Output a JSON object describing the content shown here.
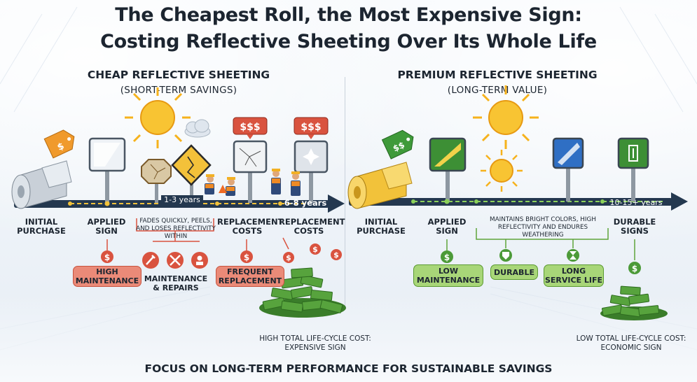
{
  "title_line1": "The Cheapest Roll, the Most Expensive Sign:",
  "title_line2": "Costing Reflective Sheeting Over Its Whole Life",
  "cheap": {
    "heading": "CHEAP REFLECTIVE SHEETING",
    "subheading": "(SHORT-TERM SAVINGS)",
    "tag_symbol": "$",
    "sign_cost_1": "$$$",
    "sign_cost_2": "$$$",
    "duration_1": "1-3 years",
    "duration_2": "6-8 years",
    "initial_purchase": "INITIAL PURCHASE",
    "applied_sign": "APPLIED SIGN",
    "fade_note": "FADES QUICKLY, PEELS, AND LOSES REFLECTIVITY WITHIN",
    "replacement_costs_1": "REPLACEMENT COSTS",
    "replacement_costs_2": "REPLACEMENT COSTS",
    "high_maintenance": "HIGH MAINTENANCE",
    "maintenance_repairs": "MAINTENANCE & REPAIRS",
    "frequent_replacement": "FREQUENT REPLACEMENT",
    "coin_symbol": "$",
    "total_cost": "HIGH TOTAL LIFE-CYCLE COST: EXPENSIVE SIGN"
  },
  "premium": {
    "heading": "PREMIUM REFLECTIVE SHEETING",
    "subheading": "(LONG-TERM VALUE)",
    "tag_symbol": "$$",
    "duration": "10-15+ years",
    "initial_purchase": "INITIAL PURCHASE",
    "applied_sign": "APPLIED SIGN",
    "maintain_note": "MAINTAINS BRIGHT COLORS, HIGH REFLECTIVITY AND ENDURES WEATHERING",
    "durable_signs": "DURABLE SIGNS",
    "low_maintenance": "LOW MAINTENANCE",
    "durable": "DURABLE",
    "long_service_life": "LONG SERVICE LIFE",
    "coin_symbol": "$",
    "total_cost": "LOW TOTAL LIFE-CYCLE COST: ECONOMIC SIGN"
  },
  "footer": "FOCUS ON LONG-TERM PERFORMANCE FOR SUSTAINABLE SAVINGS",
  "colors": {
    "cheap_accent": "#d9533f",
    "premium_accent": "#5ea43a",
    "timeline": "#24384f",
    "sun": "#f6b21c"
  }
}
